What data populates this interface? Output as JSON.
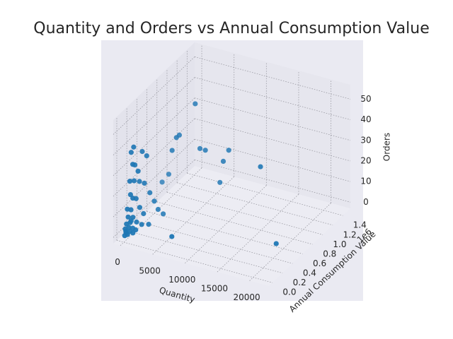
{
  "chart_data": {
    "type": "scatter3d",
    "title": "Quantity and Orders vs Annual Consumption Value",
    "xlabel": "Quantity",
    "ylabel": "Annual Consumption Value",
    "ylabel_offset": "1e6",
    "zlabel": "Orders",
    "color": "#1f77b4",
    "xlim": [
      -1100,
      23000
    ],
    "xticks": [
      0,
      5000,
      10000,
      15000,
      20000
    ],
    "ylim": [
      -0.07,
      1.55
    ],
    "yticks": [
      {
        "value": 0,
        "label": "0.0"
      },
      0.2,
      0.4,
      0.6,
      0.8,
      {
        "value": 1,
        "label": "1.0"
      },
      1.2,
      1.4
    ],
    "zlim": [
      -3,
      57
    ],
    "zticks": [
      0,
      10,
      20,
      30,
      40,
      50
    ],
    "x": [
      19300,
      6100,
      12900,
      7400,
      8300,
      8000,
      6000,
      5400,
      4900,
      3000,
      2800,
      3300,
      400,
      1500,
      200,
      350,
      600,
      150,
      900,
      1200,
      800,
      300,
      500,
      700,
      1000,
      250,
      450,
      650,
      1300,
      150,
      400,
      900,
      1600,
      200,
      550,
      1100,
      100,
      350,
      800,
      1800,
      50,
      300,
      600,
      1200,
      100,
      400,
      900,
      2200,
      50,
      250,
      700,
      1500,
      150,
      500
    ],
    "y": [
      0.55,
      0.17,
      1.06,
      0.96,
      1.02,
      0.95,
      0.85,
      0.82,
      0.79,
      0.66,
      0.6,
      0.68,
      0.71,
      0.7,
      0.12,
      0.15,
      0.1,
      0.2,
      0.25,
      0.3,
      0.18,
      0.08,
      0.14,
      0.22,
      0.28,
      0.1,
      0.12,
      0.16,
      0.35,
      0.05,
      0.09,
      0.2,
      0.4,
      0.06,
      0.11,
      0.25,
      0.04,
      0.08,
      0.15,
      0.45,
      0.02,
      0.06,
      0.1,
      0.2,
      0.03,
      0.07,
      0.12,
      0.5,
      0.01,
      0.04,
      0.09,
      0.3,
      0.02,
      0.08
    ],
    "z": [
      0,
      1,
      20,
      10,
      25,
      21,
      27,
      28,
      50,
      35,
      30,
      36,
      10,
      15,
      38,
      40,
      33,
      30,
      36,
      33,
      28,
      25,
      24,
      22,
      20,
      18,
      16,
      15,
      14,
      12,
      11,
      10,
      9,
      8,
      7,
      6,
      5,
      5,
      4,
      4,
      3,
      3,
      2,
      2,
      1,
      1,
      1,
      1,
      0,
      0,
      0,
      0,
      2,
      6
    ]
  }
}
